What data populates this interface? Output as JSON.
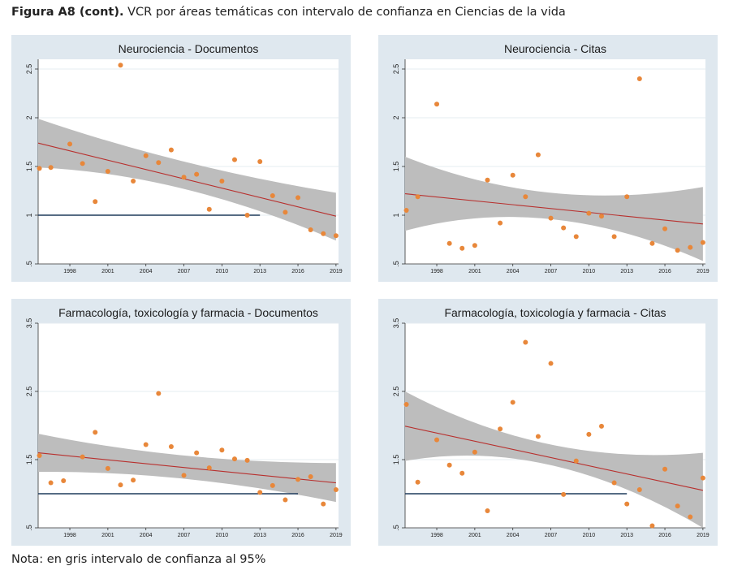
{
  "figure": {
    "label": "Figura A8 (cont).",
    "title": "VCR por áreas temáticas con intervalo de confianza en Ciencias de la vida",
    "note": "Nota: en gris intervalo de confianza al 95%"
  },
  "colors": {
    "background": "#dfe8ef",
    "plot_bg": "#ffffff",
    "points": "#e8873a",
    "fit": "#b8302e",
    "ci": "#bdbdbd",
    "reference": "#1f3b5c"
  },
  "chart_data": [
    {
      "type": "scatter",
      "title": "Neurociencia - Documentos",
      "xlim": [
        1995.5,
        2019.2
      ],
      "ylim": [
        0.5,
        2.6
      ],
      "yticks": [
        0.5,
        1,
        1.5,
        2,
        2.5
      ],
      "ytick_labels": [
        ".5",
        "1",
        "1.5",
        "2",
        "2.5"
      ],
      "xticks": [
        1998,
        2001,
        2004,
        2007,
        2010,
        2013,
        2016,
        2019
      ],
      "reference_line": {
        "y": 1,
        "x": [
          1995.5,
          2013
        ]
      },
      "fit": {
        "start": [
          1995.5,
          1.74
        ],
        "end": [
          2019,
          0.99
        ]
      },
      "ci": {
        "upper": [
          [
            1995.5,
            1.99
          ],
          [
            2007,
            1.55
          ],
          [
            2019,
            1.23
          ]
        ],
        "lower": [
          [
            1995.5,
            1.49
          ],
          [
            2007,
            1.27
          ],
          [
            2019,
            0.74
          ]
        ]
      },
      "points": [
        [
          1995.6,
          1.48
        ],
        [
          1996.5,
          1.49
        ],
        [
          1998,
          1.73
        ],
        [
          1999,
          1.53
        ],
        [
          2000,
          1.14
        ],
        [
          2001,
          1.45
        ],
        [
          2002,
          2.54
        ],
        [
          2003,
          1.35
        ],
        [
          2004,
          1.61
        ],
        [
          2005,
          1.54
        ],
        [
          2006,
          1.67
        ],
        [
          2007,
          1.39
        ],
        [
          2008,
          1.42
        ],
        [
          2009,
          1.06
        ],
        [
          2010,
          1.35
        ],
        [
          2011,
          1.57
        ],
        [
          2012,
          1.0
        ],
        [
          2013,
          1.55
        ],
        [
          2014,
          1.2
        ],
        [
          2015,
          1.03
        ],
        [
          2016,
          1.18
        ],
        [
          2017,
          0.85
        ],
        [
          2018,
          0.81
        ],
        [
          2019,
          0.79
        ]
      ]
    },
    {
      "type": "scatter",
      "title": "Neurociencia - Citas",
      "xlim": [
        1995.5,
        2019.2
      ],
      "ylim": [
        0.5,
        2.6
      ],
      "yticks": [
        0.5,
        1,
        1.5,
        2,
        2.5
      ],
      "ytick_labels": [
        ".5",
        "1",
        "1.5",
        "2",
        "2.5"
      ],
      "xticks": [
        1998,
        2001,
        2004,
        2007,
        2010,
        2013,
        2016,
        2019
      ],
      "reference_line": null,
      "fit": {
        "start": [
          1995.5,
          1.22
        ],
        "end": [
          2019,
          0.91
        ]
      },
      "ci": {
        "upper": [
          [
            1995.5,
            1.6
          ],
          [
            2007,
            1.23
          ],
          [
            2019,
            1.29
          ]
        ],
        "lower": [
          [
            1995.5,
            0.84
          ],
          [
            2007,
            0.96
          ],
          [
            2019,
            0.53
          ]
        ]
      },
      "points": [
        [
          1995.6,
          1.05
        ],
        [
          1996.5,
          1.19
        ],
        [
          1998,
          2.14
        ],
        [
          1999,
          0.71
        ],
        [
          2000,
          0.66
        ],
        [
          2001,
          0.69
        ],
        [
          2002,
          1.36
        ],
        [
          2003,
          0.92
        ],
        [
          2004,
          1.41
        ],
        [
          2005,
          1.19
        ],
        [
          2006,
          1.62
        ],
        [
          2007,
          0.97
        ],
        [
          2008,
          0.87
        ],
        [
          2009,
          0.78
        ],
        [
          2010,
          1.02
        ],
        [
          2011,
          0.99
        ],
        [
          2012,
          0.78
        ],
        [
          2013,
          1.19
        ],
        [
          2014,
          2.4
        ],
        [
          2015,
          0.71
        ],
        [
          2016,
          0.86
        ],
        [
          2017,
          0.64
        ],
        [
          2018,
          0.67
        ],
        [
          2019,
          0.72
        ]
      ]
    },
    {
      "type": "scatter",
      "title": "Farmacología, toxicología y farmacia - Documentos",
      "xlim": [
        1995.5,
        2019.2
      ],
      "ylim": [
        0.5,
        3.5
      ],
      "yticks": [
        0.5,
        1.5,
        2.5,
        3.5
      ],
      "ytick_labels": [
        ".5",
        "1.5",
        "2.5",
        "3.5"
      ],
      "xticks": [
        1998,
        2001,
        2004,
        2007,
        2010,
        2013,
        2016,
        2019
      ],
      "reference_line": {
        "y": 1,
        "x": [
          1995.5,
          2016
        ]
      },
      "fit": {
        "start": [
          1995.5,
          1.6
        ],
        "end": [
          2019,
          1.16
        ]
      },
      "ci": {
        "upper": [
          [
            1995.5,
            1.88
          ],
          [
            2007,
            1.56
          ],
          [
            2019,
            1.45
          ]
        ],
        "lower": [
          [
            1995.5,
            1.32
          ],
          [
            2007,
            1.22
          ],
          [
            2019,
            0.88
          ]
        ]
      },
      "points": [
        [
          1995.6,
          1.56
        ],
        [
          1996.5,
          1.16
        ],
        [
          1997.5,
          1.19
        ],
        [
          1999,
          1.54
        ],
        [
          2000,
          1.9
        ],
        [
          2001,
          1.37
        ],
        [
          2002,
          1.13
        ],
        [
          2003,
          1.2
        ],
        [
          2004,
          1.72
        ],
        [
          2005,
          2.47
        ],
        [
          2006,
          1.69
        ],
        [
          2007,
          1.27
        ],
        [
          2008,
          1.6
        ],
        [
          2009,
          1.38
        ],
        [
          2010,
          1.64
        ],
        [
          2011,
          1.51
        ],
        [
          2012,
          1.49
        ],
        [
          2013,
          1.02
        ],
        [
          2014,
          1.12
        ],
        [
          2015,
          0.91
        ],
        [
          2016,
          1.21
        ],
        [
          2017,
          1.25
        ],
        [
          2018,
          0.85
        ],
        [
          2019,
          1.06
        ]
      ]
    },
    {
      "type": "scatter",
      "title": "Farmacología, toxicología y farmacia - Citas",
      "xlim": [
        1995.5,
        2019.2
      ],
      "ylim": [
        0.5,
        3.5
      ],
      "yticks": [
        0.5,
        1.5,
        2.5,
        3.5
      ],
      "ytick_labels": [
        ".5",
        "1.5",
        "2.5",
        "3.5"
      ],
      "xticks": [
        1998,
        2001,
        2004,
        2007,
        2010,
        2013,
        2016,
        2019
      ],
      "reference_line": {
        "y": 1,
        "x": [
          1995.5,
          2013
        ]
      },
      "fit": {
        "start": [
          1995.5,
          1.99
        ],
        "end": [
          2019,
          1.05
        ]
      },
      "ci": {
        "upper": [
          [
            1995.5,
            2.5
          ],
          [
            2007,
            1.72
          ],
          [
            2019,
            1.6
          ]
        ],
        "lower": [
          [
            1995.5,
            1.48
          ],
          [
            2007,
            1.42
          ],
          [
            2019,
            0.5
          ]
        ]
      },
      "points": [
        [
          1995.6,
          2.31
        ],
        [
          1996.5,
          1.17
        ],
        [
          1998,
          1.79
        ],
        [
          1999,
          1.42
        ],
        [
          2000,
          1.3
        ],
        [
          2001,
          1.61
        ],
        [
          2002,
          0.75
        ],
        [
          2003,
          1.95
        ],
        [
          2004,
          2.34
        ],
        [
          2005,
          3.22
        ],
        [
          2006,
          1.84
        ],
        [
          2007,
          2.91
        ],
        [
          2008,
          0.99
        ],
        [
          2009,
          1.48
        ],
        [
          2010,
          1.87
        ],
        [
          2011,
          1.99
        ],
        [
          2012,
          1.16
        ],
        [
          2013,
          0.85
        ],
        [
          2014,
          1.06
        ],
        [
          2015,
          0.53
        ],
        [
          2016,
          1.36
        ],
        [
          2017,
          0.82
        ],
        [
          2018,
          0.66
        ],
        [
          2019,
          1.23
        ]
      ]
    }
  ]
}
